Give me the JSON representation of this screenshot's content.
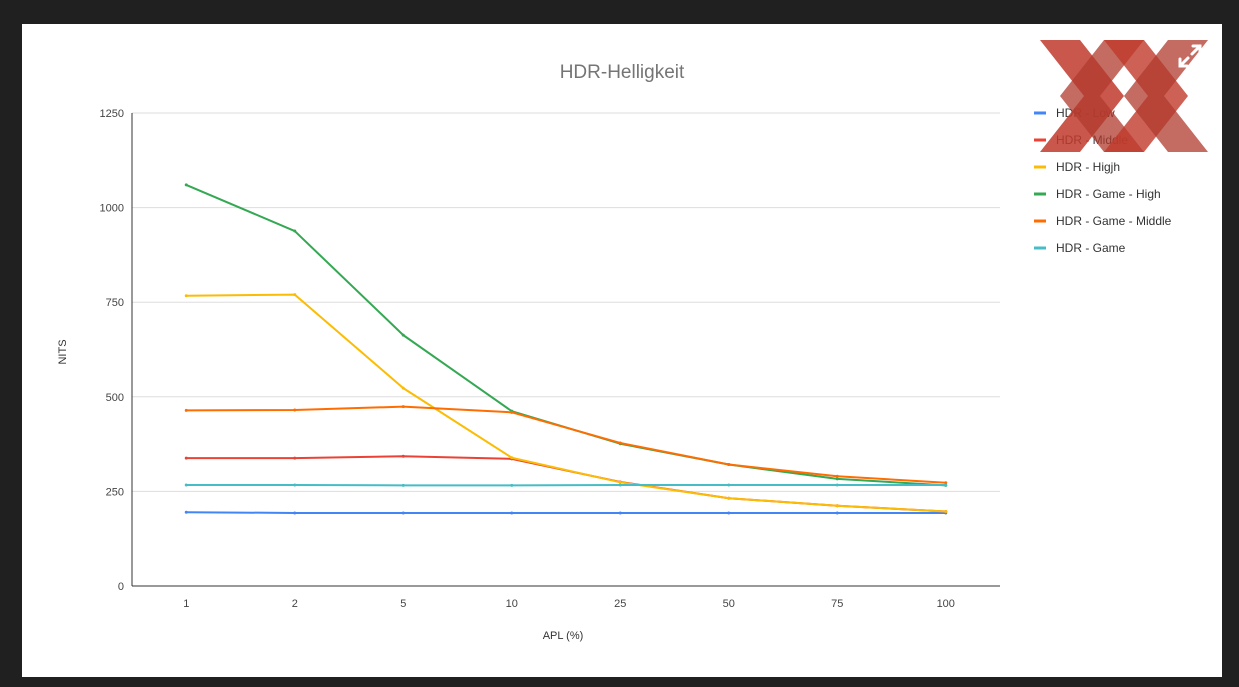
{
  "chart_data": {
    "type": "line",
    "title": "HDR-Helligkeit",
    "xlabel": "APL (%)",
    "ylabel": "NITS",
    "categories": [
      "1",
      "2",
      "5",
      "10",
      "25",
      "50",
      "75",
      "100"
    ],
    "ylim": [
      0,
      1250
    ],
    "yticks": [
      0,
      250,
      500,
      750,
      1000,
      1250
    ],
    "grid": true,
    "legend_position": "right",
    "series": [
      {
        "name": "HDR - Low",
        "color": "#4285f4",
        "values": [
          195,
          193,
          193,
          193,
          193,
          193,
          193,
          193
        ]
      },
      {
        "name": "HDR - Middle",
        "color": "#ea4335",
        "values": [
          338,
          338,
          343,
          336,
          275,
          232,
          212,
          197
        ]
      },
      {
        "name": "HDR - Higjh",
        "color": "#fbbc04",
        "values": [
          767,
          770,
          523,
          339,
          274,
          232,
          212,
          197
        ]
      },
      {
        "name": "HDR - Game - High",
        "color": "#34a853",
        "values": [
          1060,
          938,
          663,
          462,
          376,
          321,
          283,
          266
        ]
      },
      {
        "name": "HDR - Game - Middle",
        "color": "#ff6d01",
        "values": [
          464,
          465,
          474,
          459,
          378,
          321,
          290,
          273
        ]
      },
      {
        "name": "HDR - Game",
        "color": "#46bdc6",
        "values": [
          267,
          267,
          266,
          266,
          267,
          267,
          267,
          267
        ]
      }
    ]
  },
  "logo": {
    "color": "#c0392b"
  }
}
